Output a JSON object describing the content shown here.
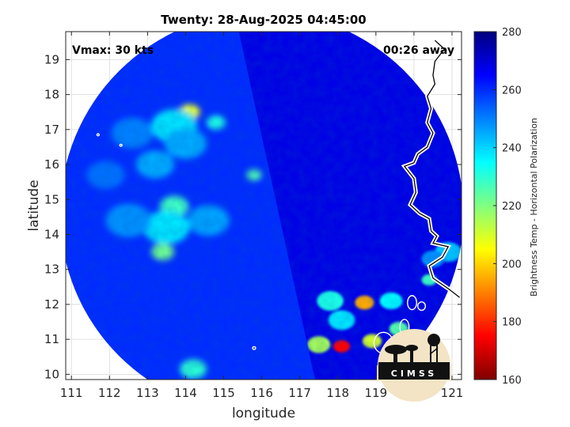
{
  "chart_data": {
    "type": "heatmap",
    "title": "Twenty: 28-Aug-2025 04:45:00",
    "xlabel": "longitude",
    "ylabel": "latitude",
    "xlim": [
      110.85,
      121.25
    ],
    "ylim": [
      9.85,
      19.8
    ],
    "xticks": [
      111,
      112,
      113,
      114,
      115,
      116,
      117,
      118,
      119,
      120,
      121
    ],
    "yticks": [
      10,
      11,
      12,
      13,
      14,
      15,
      16,
      17,
      18,
      19
    ],
    "grid": true,
    "annotations": {
      "vmax": "Vmax: 30 kts",
      "away": "00:26 away"
    },
    "swath": {
      "center": [
        116.0,
        14.6
      ],
      "radius_deg": 5.3,
      "seam_lon": [
        115.4,
        117.4
      ]
    },
    "colorbar": {
      "label": "Brightness Temp - Horizontal Polarization",
      "range": [
        160,
        280
      ],
      "ticks": [
        160,
        180,
        200,
        220,
        240,
        260,
        280
      ],
      "colormap": [
        "#7f0000",
        "#ff0000",
        "#ff8000",
        "#ffff00",
        "#80ff80",
        "#00ffff",
        "#0080ff",
        "#0000ff",
        "#00007f"
      ]
    },
    "background_tb": 262,
    "features": [
      {
        "lon": 114.1,
        "lat": 17.5,
        "tb": 208,
        "r": 0.28
      },
      {
        "lon": 113.7,
        "lat": 17.1,
        "tb": 238,
        "r": 0.6
      },
      {
        "lon": 114.8,
        "lat": 17.2,
        "tb": 232,
        "r": 0.25
      },
      {
        "lon": 114.0,
        "lat": 16.6,
        "tb": 245,
        "r": 0.55
      },
      {
        "lon": 113.2,
        "lat": 16.0,
        "tb": 245,
        "r": 0.5
      },
      {
        "lon": 115.8,
        "lat": 15.7,
        "tb": 226,
        "r": 0.2
      },
      {
        "lon": 113.7,
        "lat": 14.8,
        "tb": 228,
        "r": 0.38
      },
      {
        "lon": 113.5,
        "lat": 14.2,
        "tb": 238,
        "r": 0.6
      },
      {
        "lon": 113.4,
        "lat": 13.5,
        "tb": 222,
        "r": 0.3
      },
      {
        "lon": 112.5,
        "lat": 14.4,
        "tb": 248,
        "r": 0.6
      },
      {
        "lon": 114.6,
        "lat": 14.4,
        "tb": 246,
        "r": 0.55
      },
      {
        "lon": 112.6,
        "lat": 16.9,
        "tb": 250,
        "r": 0.55
      },
      {
        "lon": 111.9,
        "lat": 15.7,
        "tb": 252,
        "r": 0.5
      },
      {
        "lon": 114.2,
        "lat": 10.15,
        "tb": 230,
        "r": 0.35
      },
      {
        "lon": 117.8,
        "lat": 12.1,
        "tb": 232,
        "r": 0.35
      },
      {
        "lon": 118.7,
        "lat": 12.05,
        "tb": 195,
        "r": 0.25
      },
      {
        "lon": 119.4,
        "lat": 12.1,
        "tb": 235,
        "r": 0.3
      },
      {
        "lon": 118.1,
        "lat": 11.55,
        "tb": 238,
        "r": 0.35
      },
      {
        "lon": 119.6,
        "lat": 11.3,
        "tb": 225,
        "r": 0.25
      },
      {
        "lon": 118.1,
        "lat": 10.8,
        "tb": 175,
        "r": 0.22
      },
      {
        "lon": 117.5,
        "lat": 10.85,
        "tb": 215,
        "r": 0.3
      },
      {
        "lon": 118.9,
        "lat": 10.95,
        "tb": 210,
        "r": 0.25
      },
      {
        "lon": 120.4,
        "lat": 12.7,
        "tb": 228,
        "r": 0.2
      },
      {
        "lon": 120.9,
        "lat": 13.5,
        "tb": 242,
        "r": 0.35
      },
      {
        "lon": 120.5,
        "lat": 13.3,
        "tb": 248,
        "r": 0.3
      }
    ],
    "coastline": [
      [
        120.55,
        19.55
      ],
      [
        120.8,
        19.3
      ],
      [
        120.55,
        18.95
      ],
      [
        120.5,
        18.55
      ],
      [
        120.55,
        18.3
      ],
      [
        120.35,
        17.95
      ],
      [
        120.45,
        17.6
      ],
      [
        120.35,
        17.2
      ],
      [
        120.5,
        16.9
      ],
      [
        120.35,
        16.5
      ],
      [
        120.1,
        16.3
      ],
      [
        120.0,
        16.05
      ],
      [
        119.75,
        15.95
      ],
      [
        120.0,
        15.6
      ],
      [
        120.05,
        15.2
      ],
      [
        119.9,
        14.85
      ],
      [
        120.15,
        14.6
      ],
      [
        120.4,
        14.45
      ],
      [
        120.45,
        14.1
      ],
      [
        120.6,
        13.95
      ],
      [
        120.5,
        13.75
      ],
      [
        120.9,
        13.65
      ],
      [
        120.75,
        13.35
      ],
      [
        120.4,
        13.1
      ],
      [
        120.5,
        12.75
      ],
      [
        120.9,
        12.45
      ],
      [
        121.2,
        12.2
      ]
    ],
    "islands": [
      {
        "lon": 119.95,
        "lat": 12.05,
        "rx": 0.12,
        "ry": 0.2
      },
      {
        "lon": 120.2,
        "lat": 11.95,
        "rx": 0.1,
        "ry": 0.12
      },
      {
        "lon": 119.75,
        "lat": 11.35,
        "rx": 0.12,
        "ry": 0.22
      },
      {
        "lon": 119.2,
        "lat": 10.9,
        "rx": 0.25,
        "ry": 0.3
      },
      {
        "lon": 111.7,
        "lat": 16.85,
        "rx": 0.03,
        "ry": 0.03
      },
      {
        "lon": 112.3,
        "lat": 16.55,
        "rx": 0.03,
        "ry": 0.03
      },
      {
        "lon": 115.8,
        "lat": 10.75,
        "rx": 0.04,
        "ry": 0.04
      }
    ],
    "logo_text": "CIMSS"
  }
}
